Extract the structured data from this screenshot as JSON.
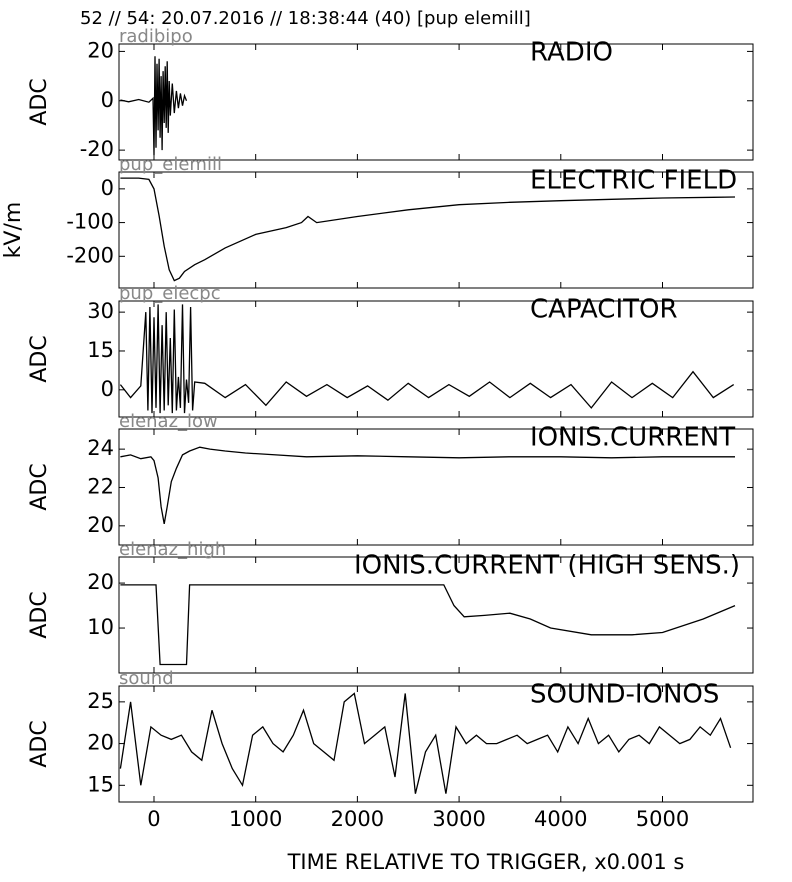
{
  "title": "52 // 54:   20.07.2016 // 18:38:44 (40)  [pup elemill]",
  "chart_data": [
    {
      "type": "line",
      "title": "RADIO",
      "source": "radibipo",
      "ylabel": "ADC",
      "color": "#000000",
      "xlim": [
        -344,
        5890
      ],
      "xticks": [
        0,
        1000,
        2000,
        3000,
        4000,
        5000
      ],
      "ylim": [
        -24,
        23
      ],
      "yticks": [
        20,
        0,
        -20
      ],
      "x": [
        -330,
        -250,
        -150,
        -50,
        -10,
        0,
        10,
        20,
        30,
        40,
        50,
        60,
        70,
        80,
        90,
        100,
        110,
        120,
        130,
        140,
        150,
        160,
        180,
        200,
        220,
        240,
        260,
        280,
        300,
        320
      ],
      "values": [
        0.3,
        -0.4,
        0.5,
        -0.6,
        1,
        -22,
        18,
        -19,
        15,
        -12,
        17,
        -15,
        10,
        -20,
        12,
        -9,
        14,
        -11,
        16,
        -13,
        8,
        -6,
        7,
        -5,
        4,
        -3,
        3,
        -2,
        2,
        0
      ]
    },
    {
      "type": "line",
      "title": "ELECTRIC FIELD",
      "source": "pup_elemill",
      "ylabel": "kV/m",
      "color": "#000000",
      "xlim": [
        -344,
        5890
      ],
      "xticks": [
        0,
        1000,
        2000,
        3000,
        4000,
        5000
      ],
      "ylim": [
        -294,
        50
      ],
      "yticks": [
        0,
        -100,
        -200
      ],
      "x": [
        -330,
        -150,
        -50,
        0,
        50,
        100,
        150,
        200,
        250,
        300,
        400,
        500,
        700,
        1000,
        1300,
        1450,
        1514,
        1600,
        2000,
        2500,
        3000,
        3500,
        4000,
        4500,
        5000,
        5500,
        5713
      ],
      "values": [
        32,
        32,
        28,
        0,
        -80,
        -170,
        -240,
        -272,
        -265,
        -245,
        -225,
        -210,
        -175,
        -135,
        -115,
        -100,
        -82,
        -100,
        -82,
        -62,
        -47,
        -40,
        -35,
        -31,
        -27,
        -25,
        -24
      ]
    },
    {
      "type": "line",
      "title": "CAPACITOR",
      "source": "pup_elecpc",
      "ylabel": "ADC",
      "color": "#000000",
      "xlim": [
        -344,
        5890
      ],
      "xticks": [
        0,
        1000,
        2000,
        3000,
        4000,
        5000
      ],
      "ylim": [
        -10.5,
        34.3
      ],
      "yticks": [
        30,
        15,
        0
      ],
      "x": [
        -330,
        -230,
        -130,
        -80,
        -60,
        -40,
        -20,
        0,
        20,
        40,
        60,
        80,
        100,
        120,
        140,
        160,
        180,
        200,
        220,
        240,
        260,
        280,
        300,
        320,
        340,
        360,
        380,
        400,
        500,
        700,
        900,
        1100,
        1300,
        1500,
        1700,
        1900,
        2100,
        2300,
        2500,
        2700,
        2900,
        3100,
        3300,
        3500,
        3700,
        3900,
        4100,
        4300,
        4500,
        4700,
        4900,
        5100,
        5300,
        5500,
        5700
      ],
      "values": [
        2,
        -3,
        1.5,
        30,
        -8,
        32,
        -9,
        28,
        -7,
        33,
        -9,
        25,
        -8,
        30,
        -6,
        20,
        -9,
        31,
        -8,
        5,
        -7,
        33,
        -9,
        4,
        -5,
        32,
        -8,
        3,
        2.5,
        -3,
        2,
        -6,
        3,
        -2.5,
        2,
        -3,
        1.5,
        -4,
        2.5,
        -3,
        2,
        -2.5,
        3,
        -3,
        2.5,
        -3,
        2,
        -7,
        3,
        -3,
        2.5,
        -3,
        7,
        -3,
        2
      ]
    },
    {
      "type": "line",
      "title": "IONIS.CURRENT",
      "source": "elenaz_low",
      "ylabel": "ADC",
      "color": "#000000",
      "xlim": [
        -344,
        5890
      ],
      "xticks": [
        0,
        1000,
        2000,
        3000,
        4000,
        5000
      ],
      "ylim": [
        19.0,
        25.05
      ],
      "yticks": [
        24,
        22,
        20
      ],
      "x": [
        -330,
        -230,
        -130,
        -30,
        0,
        40,
        70,
        100,
        130,
        170,
        220,
        280,
        350,
        450,
        550,
        700,
        900,
        1200,
        1500,
        2000,
        2500,
        3000,
        3500,
        4000,
        4500,
        5000,
        5500,
        5713
      ],
      "values": [
        23.6,
        23.7,
        23.5,
        23.6,
        23.4,
        22.5,
        21.0,
        20.1,
        21.0,
        22.3,
        23.0,
        23.7,
        23.9,
        24.1,
        24.0,
        23.9,
        23.8,
        23.7,
        23.6,
        23.65,
        23.6,
        23.55,
        23.6,
        23.6,
        23.55,
        23.6,
        23.6,
        23.6
      ]
    },
    {
      "type": "line",
      "title": "IONIS.CURRENT (HIGH SENS.)",
      "source": "elenaz_high",
      "ylabel": "ADC",
      "color": "#000000",
      "xlim": [
        -344,
        5890
      ],
      "xticks": [
        0,
        1000,
        2000,
        3000,
        4000,
        5000
      ],
      "ylim": [
        0,
        25.8
      ],
      "yticks": [
        20,
        10
      ],
      "x": [
        -330,
        20,
        60,
        320,
        350,
        2850,
        2950,
        3050,
        3250,
        3500,
        3700,
        3900,
        4300,
        4700,
        5000,
        5400,
        5713
      ],
      "values": [
        19.6,
        19.6,
        1.9,
        1.9,
        19.6,
        19.6,
        15,
        12.5,
        12.8,
        13.3,
        12,
        10,
        8.5,
        8.5,
        9,
        12,
        15
      ]
    },
    {
      "type": "line",
      "title": "SOUND-IONOS",
      "source": "sound",
      "ylabel": "ADC",
      "color": "#000000",
      "xlim": [
        -344,
        5890
      ],
      "xticks": [
        0,
        1000,
        2000,
        3000,
        4000,
        5000
      ],
      "ylim": [
        13,
        26.9
      ],
      "yticks": [
        25,
        20,
        15
      ],
      "xlabel": "TIME RELATIVE TO TRIGGER,   x0.001 s",
      "x": [
        -330,
        -230,
        -130,
        -30,
        70,
        170,
        270,
        370,
        470,
        570,
        670,
        770,
        870,
        970,
        1070,
        1170,
        1270,
        1370,
        1470,
        1570,
        1670,
        1770,
        1870,
        1970,
        2070,
        2170,
        2270,
        2370,
        2470,
        2570,
        2670,
        2770,
        2870,
        2970,
        3070,
        3170,
        3270,
        3370,
        3470,
        3570,
        3670,
        3770,
        3870,
        3970,
        4070,
        4170,
        4270,
        4370,
        4470,
        4570,
        4670,
        4770,
        4870,
        4970,
        5070,
        5170,
        5270,
        5370,
        5470,
        5570,
        5670
      ],
      "values": [
        17,
        25,
        15,
        22,
        21,
        20.5,
        21,
        19,
        18,
        24,
        20,
        17,
        15,
        21,
        22,
        20,
        19,
        21,
        24,
        20,
        19,
        18,
        25,
        26,
        20,
        21,
        22,
        16,
        26,
        14,
        19,
        21,
        14,
        22,
        20,
        21,
        20,
        20,
        20.5,
        21,
        20,
        20.5,
        21,
        19,
        22,
        20,
        23,
        20,
        21,
        19,
        20.5,
        21,
        20,
        22,
        21,
        20,
        20.5,
        22,
        21,
        23,
        19.5
      ]
    }
  ]
}
